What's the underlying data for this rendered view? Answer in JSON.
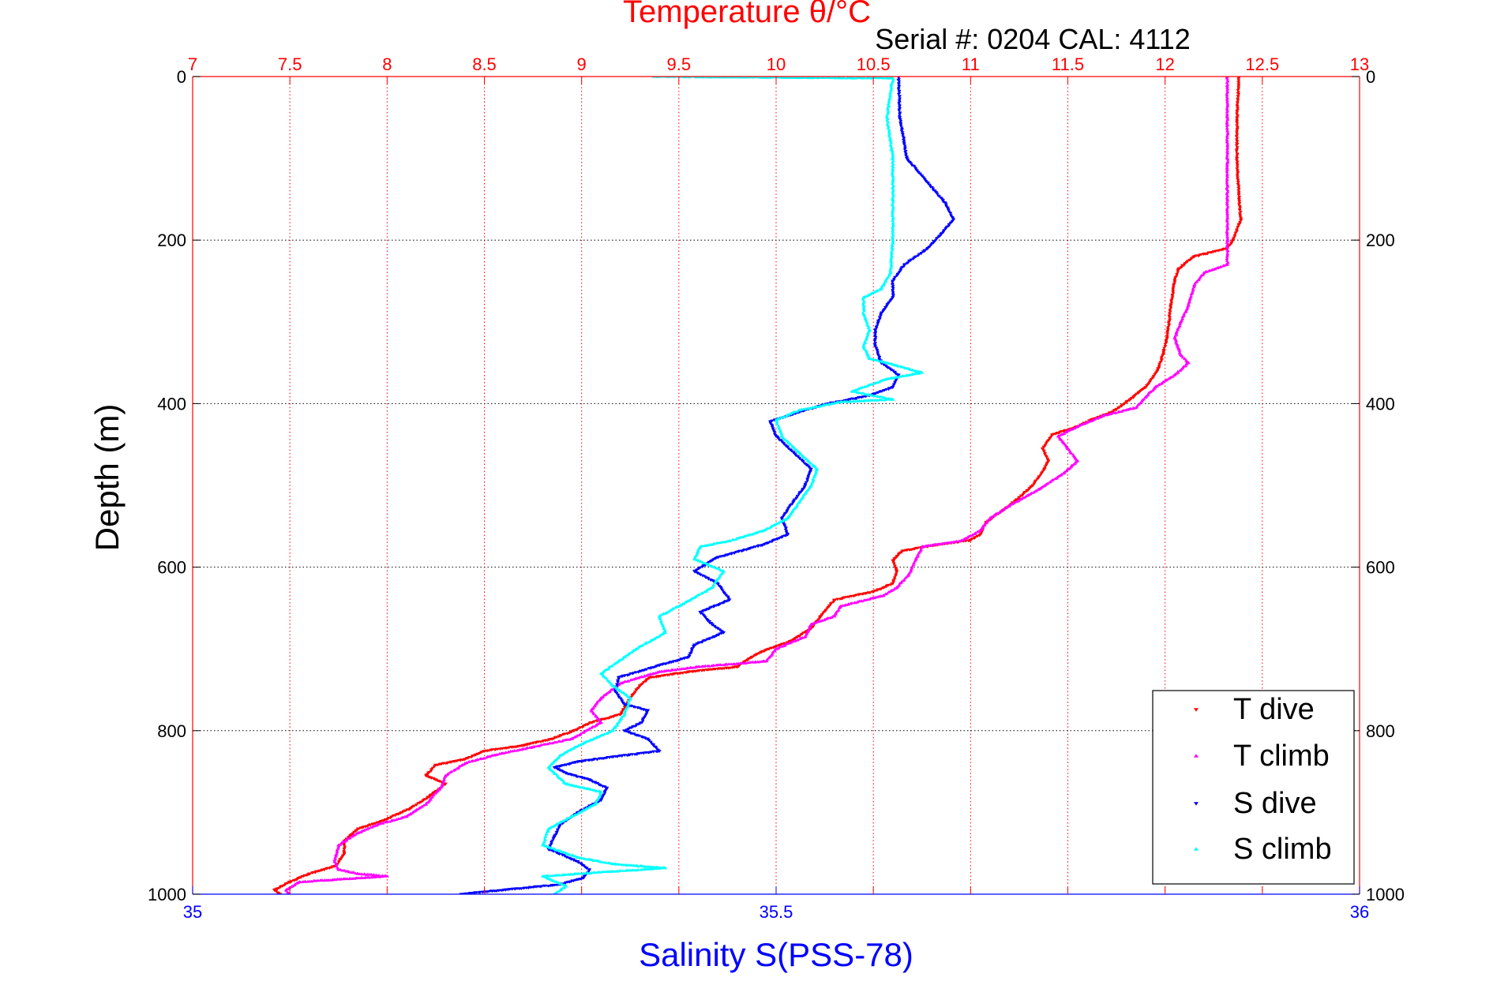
{
  "chart_data": {
    "type": "scatter",
    "title": "Temperature θ/°C",
    "subtitle": "Serial #: 0204  CAL: 4112",
    "ylabel": "Depth (m)",
    "x_bottom_label": "Salinity S(PSS-78)",
    "x_top": {
      "lim": [
        7,
        13
      ],
      "ticks": [
        7,
        7.5,
        8,
        8.5,
        9,
        9.5,
        10,
        10.5,
        11,
        11.5,
        12,
        12.5,
        13
      ],
      "color": "#ff0000"
    },
    "x_bottom": {
      "lim": [
        35,
        36
      ],
      "ticks": [
        35,
        35.5,
        36
      ],
      "color": "#0000ff"
    },
    "ylim": [
      0,
      1000
    ],
    "y_reversed": true,
    "y_ticks": [
      0,
      200,
      400,
      600,
      800,
      1000
    ],
    "grid": {
      "x_top": true,
      "y": true
    },
    "legend": {
      "placement": "bottom-right"
    },
    "series": [
      {
        "name": "T dive",
        "axis": "top",
        "color": "#ff0000",
        "marker": "triangle-down",
        "points": [
          [
            12.38,
            0
          ],
          [
            12.37,
            50
          ],
          [
            12.37,
            100
          ],
          [
            12.38,
            150
          ],
          [
            12.39,
            175
          ],
          [
            12.35,
            200
          ],
          [
            12.32,
            210
          ],
          [
            12.15,
            220
          ],
          [
            12.07,
            235
          ],
          [
            12.05,
            250
          ],
          [
            12.03,
            280
          ],
          [
            12.02,
            300
          ],
          [
            12.01,
            320
          ],
          [
            11.99,
            340
          ],
          [
            11.96,
            360
          ],
          [
            11.9,
            380
          ],
          [
            11.82,
            395
          ],
          [
            11.73,
            410
          ],
          [
            11.62,
            420
          ],
          [
            11.55,
            428
          ],
          [
            11.42,
            438
          ],
          [
            11.37,
            455
          ],
          [
            11.4,
            470
          ],
          [
            11.38,
            480
          ],
          [
            11.32,
            500
          ],
          [
            11.25,
            515
          ],
          [
            11.17,
            530
          ],
          [
            11.08,
            545
          ],
          [
            11.05,
            560
          ],
          [
            11.0,
            567
          ],
          [
            10.82,
            573
          ],
          [
            10.65,
            580
          ],
          [
            10.6,
            592
          ],
          [
            10.62,
            605
          ],
          [
            10.6,
            620
          ],
          [
            10.5,
            630
          ],
          [
            10.3,
            640
          ],
          [
            10.23,
            660
          ],
          [
            10.18,
            675
          ],
          [
            10.08,
            690
          ],
          [
            9.93,
            703
          ],
          [
            9.86,
            712
          ],
          [
            9.8,
            722
          ],
          [
            9.55,
            728
          ],
          [
            9.35,
            735
          ],
          [
            9.3,
            745
          ],
          [
            9.25,
            760
          ],
          [
            9.2,
            780
          ],
          [
            9.05,
            790
          ],
          [
            8.96,
            800
          ],
          [
            8.85,
            810
          ],
          [
            8.7,
            818
          ],
          [
            8.5,
            825
          ],
          [
            8.4,
            835
          ],
          [
            8.25,
            842
          ],
          [
            8.2,
            855
          ],
          [
            8.3,
            865
          ],
          [
            8.22,
            880
          ],
          [
            8.12,
            895
          ],
          [
            7.98,
            910
          ],
          [
            7.85,
            920
          ],
          [
            7.78,
            935
          ],
          [
            7.78,
            950
          ],
          [
            7.74,
            965
          ],
          [
            7.6,
            975
          ],
          [
            7.5,
            985
          ],
          [
            7.42,
            995
          ],
          [
            7.45,
            1000
          ]
        ]
      },
      {
        "name": "T climb",
        "axis": "top",
        "color": "#ff00ff",
        "marker": "triangle-up",
        "points": [
          [
            12.32,
            0
          ],
          [
            12.32,
            50
          ],
          [
            12.32,
            100
          ],
          [
            12.32,
            150
          ],
          [
            12.32,
            200
          ],
          [
            12.32,
            230
          ],
          [
            12.2,
            240
          ],
          [
            12.15,
            255
          ],
          [
            12.12,
            280
          ],
          [
            12.08,
            300
          ],
          [
            12.05,
            320
          ],
          [
            12.08,
            340
          ],
          [
            12.12,
            350
          ],
          [
            12.05,
            365
          ],
          [
            11.95,
            380
          ],
          [
            11.9,
            392
          ],
          [
            11.85,
            405
          ],
          [
            11.68,
            415
          ],
          [
            11.55,
            428
          ],
          [
            11.45,
            440
          ],
          [
            11.5,
            455
          ],
          [
            11.55,
            470
          ],
          [
            11.48,
            485
          ],
          [
            11.35,
            505
          ],
          [
            11.2,
            525
          ],
          [
            11.1,
            540
          ],
          [
            11.05,
            555
          ],
          [
            10.95,
            568
          ],
          [
            10.75,
            575
          ],
          [
            10.72,
            590
          ],
          [
            10.68,
            610
          ],
          [
            10.62,
            625
          ],
          [
            10.55,
            635
          ],
          [
            10.33,
            648
          ],
          [
            10.3,
            660
          ],
          [
            10.18,
            670
          ],
          [
            10.15,
            685
          ],
          [
            10.0,
            700
          ],
          [
            9.95,
            715
          ],
          [
            9.6,
            722
          ],
          [
            9.4,
            728
          ],
          [
            9.2,
            742
          ],
          [
            9.1,
            760
          ],
          [
            9.05,
            775
          ],
          [
            9.1,
            790
          ],
          [
            8.95,
            810
          ],
          [
            8.75,
            820
          ],
          [
            8.55,
            830
          ],
          [
            8.4,
            840
          ],
          [
            8.3,
            855
          ],
          [
            8.28,
            868
          ],
          [
            8.2,
            890
          ],
          [
            8.1,
            905
          ],
          [
            7.95,
            915
          ],
          [
            7.85,
            925
          ],
          [
            7.75,
            940
          ],
          [
            7.73,
            960
          ],
          [
            7.75,
            970
          ],
          [
            7.85,
            975
          ],
          [
            8.0,
            978
          ],
          [
            7.55,
            985
          ],
          [
            7.48,
            995
          ],
          [
            7.5,
            1000
          ]
        ]
      },
      {
        "name": "S dive",
        "axis": "bottom",
        "color": "#0000ff",
        "marker": "triangle-down",
        "points": [
          [
            35.605,
            0
          ],
          [
            35.606,
            50
          ],
          [
            35.612,
            100
          ],
          [
            35.63,
            130
          ],
          [
            35.645,
            155
          ],
          [
            35.652,
            175
          ],
          [
            35.64,
            195
          ],
          [
            35.63,
            210
          ],
          [
            35.61,
            230
          ],
          [
            35.6,
            250
          ],
          [
            35.6,
            270
          ],
          [
            35.59,
            290
          ],
          [
            35.585,
            310
          ],
          [
            35.585,
            330
          ],
          [
            35.59,
            350
          ],
          [
            35.605,
            365
          ],
          [
            35.6,
            380
          ],
          [
            35.58,
            390
          ],
          [
            35.545,
            400
          ],
          [
            35.52,
            410
          ],
          [
            35.495,
            422
          ],
          [
            35.5,
            440
          ],
          [
            35.515,
            460
          ],
          [
            35.53,
            480
          ],
          [
            35.525,
            500
          ],
          [
            35.515,
            520
          ],
          [
            35.505,
            540
          ],
          [
            35.51,
            560
          ],
          [
            35.49,
            572
          ],
          [
            35.45,
            588
          ],
          [
            35.43,
            605
          ],
          [
            35.45,
            620
          ],
          [
            35.46,
            640
          ],
          [
            35.435,
            655
          ],
          [
            35.445,
            670
          ],
          [
            35.455,
            680
          ],
          [
            35.43,
            695
          ],
          [
            35.425,
            710
          ],
          [
            35.4,
            720
          ],
          [
            35.365,
            735
          ],
          [
            35.362,
            752
          ],
          [
            35.37,
            768
          ],
          [
            35.39,
            775
          ],
          [
            35.385,
            790
          ],
          [
            35.37,
            800
          ],
          [
            35.39,
            810
          ],
          [
            35.4,
            825
          ],
          [
            35.36,
            832
          ],
          [
            35.33,
            838
          ],
          [
            35.31,
            845
          ],
          [
            35.32,
            852
          ],
          [
            35.34,
            860
          ],
          [
            35.355,
            870
          ],
          [
            35.35,
            885
          ],
          [
            35.33,
            900
          ],
          [
            35.315,
            915
          ],
          [
            35.31,
            930
          ],
          [
            35.305,
            945
          ],
          [
            35.33,
            960
          ],
          [
            35.34,
            970
          ],
          [
            35.335,
            980
          ],
          [
            35.315,
            988
          ],
          [
            35.28,
            993
          ],
          [
            35.25,
            997
          ],
          [
            35.23,
            1000
          ]
        ]
      },
      {
        "name": "S climb",
        "axis": "bottom",
        "color": "#00ffff",
        "marker": "triangle-up",
        "points": [
          [
            35.395,
            0
          ],
          [
            35.6,
            2
          ],
          [
            35.595,
            50
          ],
          [
            35.6,
            100
          ],
          [
            35.6,
            150
          ],
          [
            35.6,
            200
          ],
          [
            35.598,
            240
          ],
          [
            35.59,
            260
          ],
          [
            35.575,
            270
          ],
          [
            35.575,
            290
          ],
          [
            35.58,
            310
          ],
          [
            35.575,
            330
          ],
          [
            35.58,
            345
          ],
          [
            35.6,
            352
          ],
          [
            35.625,
            362
          ],
          [
            35.595,
            370
          ],
          [
            35.565,
            385
          ],
          [
            35.6,
            395
          ],
          [
            35.555,
            398
          ],
          [
            35.52,
            408
          ],
          [
            35.5,
            420
          ],
          [
            35.505,
            440
          ],
          [
            35.52,
            460
          ],
          [
            35.535,
            480
          ],
          [
            35.53,
            500
          ],
          [
            35.52,
            520
          ],
          [
            35.51,
            540
          ],
          [
            35.49,
            555
          ],
          [
            35.46,
            568
          ],
          [
            35.435,
            575
          ],
          [
            35.43,
            590
          ],
          [
            35.455,
            605
          ],
          [
            35.445,
            625
          ],
          [
            35.42,
            645
          ],
          [
            35.4,
            660
          ],
          [
            35.405,
            680
          ],
          [
            35.38,
            700
          ],
          [
            35.365,
            715
          ],
          [
            35.35,
            730
          ],
          [
            35.36,
            745
          ],
          [
            35.375,
            760
          ],
          [
            35.37,
            780
          ],
          [
            35.36,
            800
          ],
          [
            35.335,
            815
          ],
          [
            35.315,
            830
          ],
          [
            35.305,
            845
          ],
          [
            35.32,
            865
          ],
          [
            35.35,
            875
          ],
          [
            35.345,
            890
          ],
          [
            35.325,
            905
          ],
          [
            35.305,
            920
          ],
          [
            35.3,
            940
          ],
          [
            35.33,
            955
          ],
          [
            35.36,
            963
          ],
          [
            35.405,
            968
          ],
          [
            35.3,
            978
          ],
          [
            35.32,
            990
          ],
          [
            35.31,
            1000
          ]
        ]
      }
    ]
  }
}
